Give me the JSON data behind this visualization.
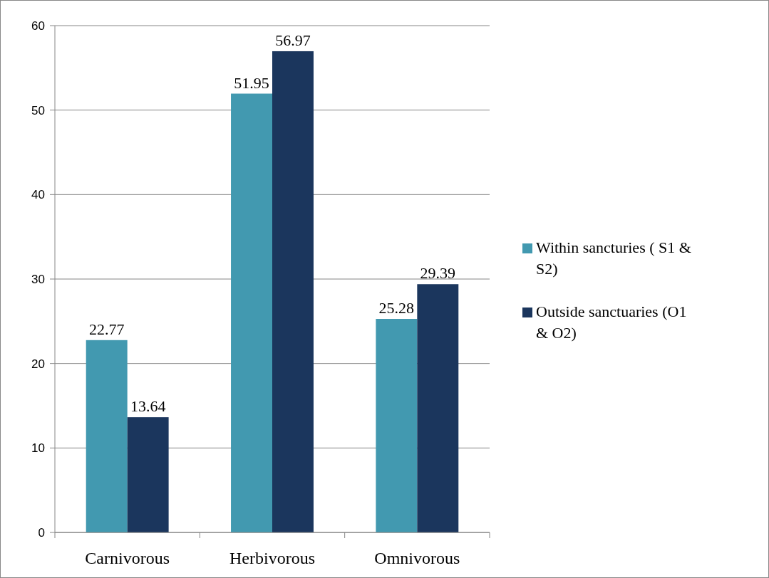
{
  "chart_data": {
    "type": "bar",
    "categories": [
      "Carnivorous",
      "Herbivorous",
      "Omnivorous"
    ],
    "series": [
      {
        "name": "Within sancturies ( S1 & S2)",
        "color": "#4299b0",
        "values": [
          22.77,
          51.95,
          25.28
        ]
      },
      {
        "name": "Outside sanctuaries (O1 & O2)",
        "color": "#1b365d",
        "values": [
          13.64,
          56.97,
          29.39
        ]
      }
    ],
    "ylim": [
      0,
      60
    ],
    "yticks": [
      0,
      10,
      20,
      30,
      40,
      50,
      60
    ],
    "grid": "y",
    "legend": "right",
    "data_labels": true
  }
}
